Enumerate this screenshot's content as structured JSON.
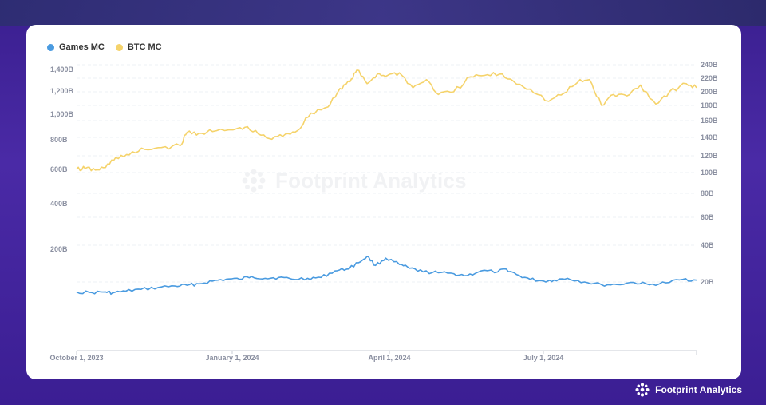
{
  "brand": {
    "name": "Footprint Analytics",
    "icon": "footprint-flower-icon"
  },
  "watermark": {
    "text": "Footprint Analytics",
    "icon": "footprint-flower-icon"
  },
  "colors": {
    "games": "#4a9be0",
    "btc": "#f5d36b"
  },
  "chart_data": {
    "type": "line",
    "legend_position": "top-left",
    "grid": true,
    "x_ticks": [
      "October 1, 2023",
      "January 1, 2024",
      "April 1, 2024",
      "July 1, 2024"
    ],
    "left_axis": {
      "scale": "log",
      "ticks": [
        "1,400B",
        "1,200B",
        "1,000B",
        "800B",
        "600B",
        "400B",
        "200B"
      ],
      "tick_values": [
        1400,
        1200,
        1000,
        800,
        600,
        400,
        200
      ]
    },
    "right_axis": {
      "ticks": [
        "240B",
        "220B",
        "200B",
        "180B",
        "160B",
        "140B",
        "120B",
        "100B",
        "80B",
        "60B",
        "40B",
        "20B"
      ],
      "tick_values": [
        240,
        220,
        200,
        180,
        160,
        140,
        120,
        100,
        80,
        60,
        40,
        20
      ]
    },
    "x_range": [
      "2023-10-01",
      "2024-09-30"
    ],
    "series": [
      {
        "name": "Games MC",
        "axis": "right",
        "color": "#4a9be0",
        "points": [
          [
            "2023-10-01",
            14.5
          ],
          [
            "2023-10-10",
            14.2
          ],
          [
            "2023-10-18",
            14.6
          ],
          [
            "2023-10-22",
            14.0
          ],
          [
            "2023-10-30",
            15.0
          ],
          [
            "2023-11-08",
            16.0
          ],
          [
            "2023-11-18",
            17.0
          ],
          [
            "2023-11-28",
            17.8
          ],
          [
            "2023-12-05",
            18.2
          ],
          [
            "2023-12-12",
            19.0
          ],
          [
            "2023-12-20",
            20.5
          ],
          [
            "2023-12-28",
            21.5
          ],
          [
            "2024-01-05",
            21.5
          ],
          [
            "2024-01-12",
            23.0
          ],
          [
            "2024-01-20",
            22.0
          ],
          [
            "2024-01-28",
            22.5
          ],
          [
            "2024-02-05",
            21.5
          ],
          [
            "2024-02-14",
            22.0
          ],
          [
            "2024-02-22",
            22.5
          ],
          [
            "2024-03-01",
            26.0
          ],
          [
            "2024-03-08",
            27.0
          ],
          [
            "2024-03-15",
            30.5
          ],
          [
            "2024-03-20",
            34.0
          ],
          [
            "2024-03-25",
            29.0
          ],
          [
            "2024-03-31",
            33.0
          ],
          [
            "2024-04-08",
            29.5
          ],
          [
            "2024-04-14",
            27.5
          ],
          [
            "2024-04-22",
            25.5
          ],
          [
            "2024-05-01",
            25.0
          ],
          [
            "2024-05-10",
            24.5
          ],
          [
            "2024-05-18",
            23.5
          ],
          [
            "2024-05-26",
            26.0
          ],
          [
            "2024-06-05",
            25.5
          ],
          [
            "2024-06-10",
            27.0
          ],
          [
            "2024-06-16",
            24.0
          ],
          [
            "2024-06-24",
            21.5
          ],
          [
            "2024-07-02",
            20.5
          ],
          [
            "2024-07-08",
            21.0
          ],
          [
            "2024-07-16",
            22.0
          ],
          [
            "2024-07-26",
            20.0
          ],
          [
            "2024-08-05",
            18.5
          ],
          [
            "2024-08-14",
            18.6
          ],
          [
            "2024-08-24",
            19.8
          ],
          [
            "2024-09-02",
            18.5
          ],
          [
            "2024-09-12",
            19.5
          ],
          [
            "2024-09-22",
            21.5
          ],
          [
            "2024-09-30",
            21.0
          ]
        ]
      },
      {
        "name": "BTC MC",
        "axis": "right",
        "color": "#f5d36b",
        "points": [
          [
            "2023-10-01",
            104
          ],
          [
            "2023-10-06",
            105
          ],
          [
            "2023-10-12",
            103
          ],
          [
            "2023-10-18",
            106
          ],
          [
            "2023-10-24",
            118
          ],
          [
            "2023-11-01",
            121
          ],
          [
            "2023-11-10",
            127
          ],
          [
            "2023-11-20",
            129
          ],
          [
            "2023-12-01",
            131
          ],
          [
            "2023-12-05",
            146
          ],
          [
            "2023-12-12",
            145
          ],
          [
            "2023-12-20",
            147
          ],
          [
            "2024-01-01",
            149
          ],
          [
            "2024-01-08",
            152
          ],
          [
            "2024-01-16",
            144
          ],
          [
            "2024-01-24",
            138
          ],
          [
            "2024-02-01",
            144
          ],
          [
            "2024-02-08",
            148
          ],
          [
            "2024-02-16",
            170
          ],
          [
            "2024-02-26",
            178
          ],
          [
            "2024-03-04",
            205
          ],
          [
            "2024-03-10",
            215
          ],
          [
            "2024-03-14",
            232
          ],
          [
            "2024-03-20",
            212
          ],
          [
            "2024-03-26",
            226
          ],
          [
            "2024-04-01",
            224
          ],
          [
            "2024-04-08",
            228
          ],
          [
            "2024-04-16",
            206
          ],
          [
            "2024-04-24",
            218
          ],
          [
            "2024-05-01",
            196
          ],
          [
            "2024-05-10",
            200
          ],
          [
            "2024-05-20",
            222
          ],
          [
            "2024-05-28",
            224
          ],
          [
            "2024-06-06",
            226
          ],
          [
            "2024-06-14",
            216
          ],
          [
            "2024-06-24",
            204
          ],
          [
            "2024-07-05",
            186
          ],
          [
            "2024-07-14",
            198
          ],
          [
            "2024-07-22",
            214
          ],
          [
            "2024-07-29",
            218
          ],
          [
            "2024-08-05",
            180
          ],
          [
            "2024-08-12",
            196
          ],
          [
            "2024-08-20",
            194
          ],
          [
            "2024-08-28",
            210
          ],
          [
            "2024-09-06",
            182
          ],
          [
            "2024-09-14",
            200
          ],
          [
            "2024-09-24",
            212
          ],
          [
            "2024-09-30",
            206
          ]
        ]
      }
    ]
  }
}
